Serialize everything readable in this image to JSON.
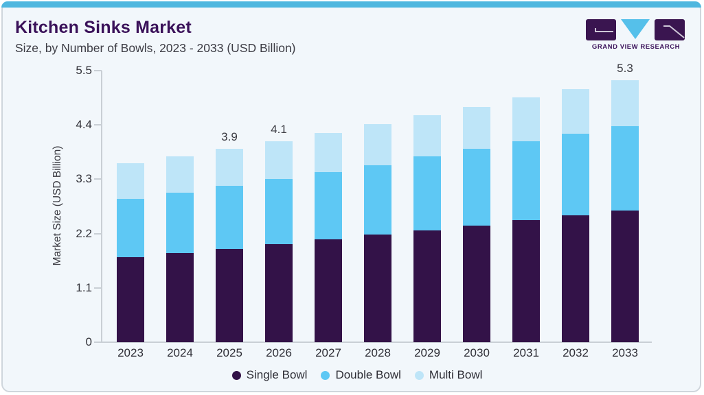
{
  "header": {
    "title": "Kitchen Sinks Market",
    "subtitle": "Size, by Number of Bowls, 2023 - 2033 (USD Billion)"
  },
  "logo": {
    "brand_text": "GRAND VIEW RESEARCH"
  },
  "colors": {
    "accent_topbar": "#4FB7DF",
    "title_purple": "#3A1159",
    "single_bowl": "#331248",
    "double_bowl": "#5EC8F4",
    "multi_bowl": "#BEE5F8",
    "card_background": "#F2F7FB",
    "axis_gray": "#C9CFD5"
  },
  "chart_data": {
    "type": "bar",
    "stacked": true,
    "title": "Kitchen Sinks Market Size, by Number of Bowls, 2023 - 2033 (USD Billion)",
    "categories": [
      "2023",
      "2024",
      "2025",
      "2026",
      "2027",
      "2028",
      "2029",
      "2030",
      "2031",
      "2032",
      "2033"
    ],
    "series": [
      {
        "name": "Single Bowl",
        "color": "#331248",
        "values": [
          1.72,
          1.8,
          1.89,
          1.98,
          2.08,
          2.18,
          2.26,
          2.36,
          2.47,
          2.57,
          2.67
        ]
      },
      {
        "name": "Double Bowl",
        "color": "#5EC8F4",
        "values": [
          1.18,
          1.23,
          1.27,
          1.32,
          1.37,
          1.41,
          1.5,
          1.55,
          1.6,
          1.65,
          1.7
        ]
      },
      {
        "name": "Multi Bowl",
        "color": "#BEE5F8",
        "values": [
          0.73,
          0.74,
          0.76,
          0.77,
          0.79,
          0.83,
          0.84,
          0.86,
          0.89,
          0.91,
          0.93
        ]
      }
    ],
    "totals_approx": [
      3.63,
      3.77,
      3.92,
      4.07,
      4.24,
      4.42,
      4.6,
      4.77,
      4.96,
      5.13,
      5.3
    ],
    "data_labels": [
      {
        "category": "2025",
        "text": "3.9"
      },
      {
        "category": "2026",
        "text": "4.1"
      },
      {
        "category": "2033",
        "text": "5.3"
      }
    ],
    "xlabel": "",
    "ylabel": "Market Size (USD Billion)",
    "ylim": [
      0,
      5.5
    ],
    "yticks": {
      "labels": [
        "0",
        "1.1",
        "2.2",
        "3.3",
        "4.4",
        "5.5"
      ],
      "values": [
        0,
        1.1,
        2.2,
        3.3,
        4.4,
        5.5
      ]
    },
    "grid": false,
    "legend_position": "bottom"
  }
}
